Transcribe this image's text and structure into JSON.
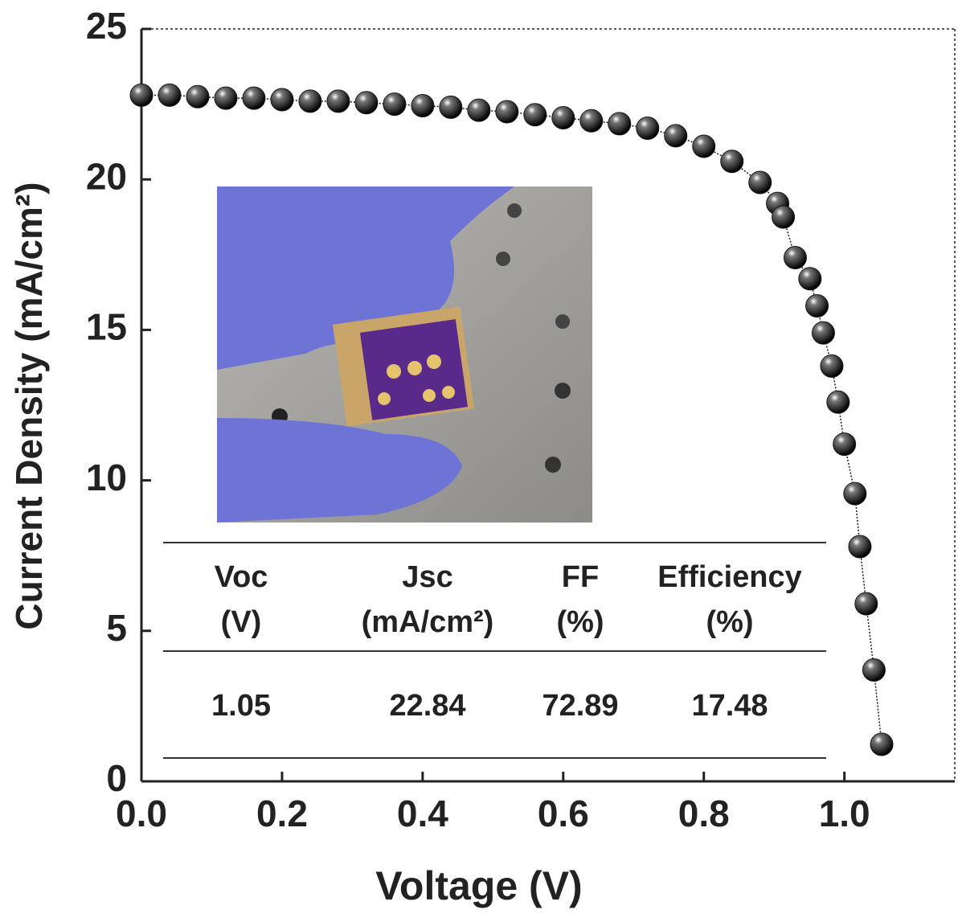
{
  "chart_data": {
    "type": "scatter",
    "x_label": "Voltage (V)",
    "y_label": "Current Density (mA/cm²)",
    "x": [
      0,
      0.04,
      0.08,
      0.12,
      0.16,
      0.2,
      0.24,
      0.28,
      0.32,
      0.36,
      0.4,
      0.44,
      0.48,
      0.52,
      0.56,
      0.6,
      0.64,
      0.68,
      0.72,
      0.76,
      0.8,
      0.84,
      0.88,
      0.905,
      0.913,
      0.93,
      0.951,
      0.961,
      0.97,
      0.982,
      0.991,
      1.0,
      1.015,
      1.022,
      1.031,
      1.042,
      1.053
    ],
    "values": [
      22.8,
      22.8,
      22.75,
      22.7,
      22.7,
      22.65,
      22.6,
      22.6,
      22.55,
      22.5,
      22.45,
      22.4,
      22.3,
      22.25,
      22.15,
      22.05,
      21.95,
      21.85,
      21.7,
      21.45,
      21.1,
      20.6,
      19.9,
      19.2,
      18.75,
      17.4,
      16.7,
      15.8,
      14.9,
      13.8,
      12.6,
      11.2,
      9.56,
      7.8,
      5.9,
      3.7,
      1.23
    ],
    "color": "#1a1a1a",
    "xlim": [
      0,
      1.157
    ],
    "ylim": [
      0,
      25
    ],
    "xticks": [
      {
        "value": 0,
        "label": "0.0"
      },
      0.2,
      0.4,
      0.6,
      0.8,
      {
        "value": 1,
        "label": "1.0"
      }
    ],
    "yticks": [
      0,
      5,
      10,
      15,
      20,
      25
    ]
  },
  "table": {
    "headers": [
      [
        "Voc",
        "(V)"
      ],
      [
        "Jsc",
        "(mA/cm²)"
      ],
      [
        "FF",
        "(%)"
      ],
      [
        "Efficiency",
        "(%)"
      ]
    ],
    "row": [
      1.05,
      22.84,
      72.89,
      17.48
    ]
  }
}
